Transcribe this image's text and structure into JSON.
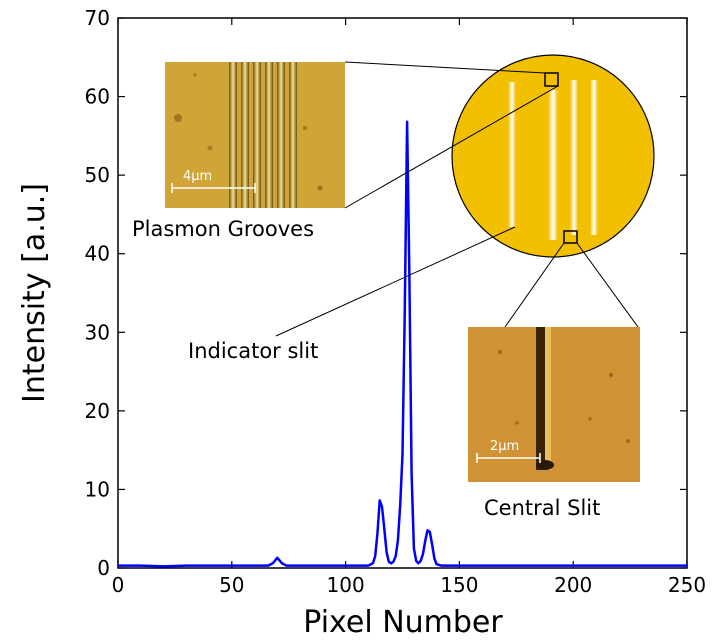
{
  "chart_data": {
    "type": "line",
    "title": "",
    "xlabel": "Pixel Number",
    "ylabel": "Intensity [a.u.]",
    "xlim": [
      0,
      250
    ],
    "ylim": [
      0,
      70
    ],
    "xticks": [
      0,
      50,
      100,
      150,
      200,
      250
    ],
    "yticks": [
      0,
      10,
      20,
      30,
      40,
      50,
      60,
      70
    ],
    "grid": false,
    "legend": "none",
    "series": [
      {
        "color": "#0000ff",
        "x": [
          0,
          10,
          20,
          30,
          40,
          50,
          60,
          66,
          68,
          70,
          72,
          74,
          78,
          85,
          95,
          105,
          110,
          112,
          113,
          114,
          115,
          116,
          117,
          118,
          119,
          120,
          121,
          122,
          123,
          124,
          125,
          126,
          127,
          128,
          129,
          130,
          131,
          132,
          133,
          134,
          135,
          136,
          137,
          138,
          139,
          140,
          141,
          142,
          145,
          150,
          160,
          170,
          180,
          190,
          200,
          210,
          220,
          230,
          240,
          250
        ],
        "y": [
          0.3,
          0.3,
          0.2,
          0.3,
          0.3,
          0.3,
          0.3,
          0.3,
          0.6,
          1.3,
          0.6,
          0.3,
          0.3,
          0.3,
          0.3,
          0.3,
          0.3,
          0.6,
          1.5,
          4.5,
          8.6,
          7.8,
          5.0,
          2.0,
          0.8,
          0.6,
          0.8,
          1.5,
          3.5,
          8.0,
          14.5,
          33.0,
          56.8,
          38.0,
          12.0,
          2.5,
          0.9,
          0.6,
          0.9,
          1.8,
          3.5,
          4.8,
          4.6,
          3.0,
          1.2,
          0.5,
          0.4,
          0.3,
          0.3,
          0.3,
          0.3,
          0.3,
          0.3,
          0.3,
          0.3,
          0.3,
          0.3,
          0.3,
          0.3,
          0.3
        ]
      }
    ],
    "annotations": [
      "Plasmon Grooves",
      "Indicator slit",
      "Central Slit"
    ],
    "scale_bars": [
      "4µm",
      "2µm"
    ]
  },
  "colors": {
    "line": "#0000ff",
    "disc": "#f2c000",
    "afm_background": "#d4a73a",
    "afm_central": "#c98a2a"
  }
}
